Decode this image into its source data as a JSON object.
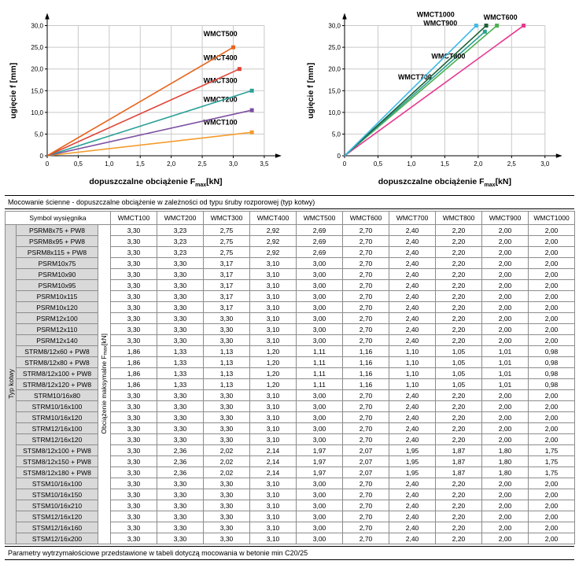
{
  "chart_data": [
    {
      "type": "line",
      "title": "",
      "xlabel_pre": "dopuszczalne obciążenie F",
      "xlabel_sub": "max",
      "xlabel_post": "[kN]",
      "ylabel": "ugięcie f [mm]",
      "xlim": [
        0,
        3.78
      ],
      "ylim": [
        0,
        33
      ],
      "grid": true,
      "legend_position": "inline-labels",
      "x_ticks": [
        {
          "v": 0,
          "label": "0"
        },
        {
          "v": 0.5,
          "label": "0,5"
        },
        {
          "v": 1,
          "label": "1,0"
        },
        {
          "v": 1.5,
          "label": "1,5"
        },
        {
          "v": 2,
          "label": "2,0"
        },
        {
          "v": 2.5,
          "label": "2,5"
        },
        {
          "v": 3,
          "label": "3,0"
        },
        {
          "v": 3.5,
          "label": "3,5"
        }
      ],
      "y_ticks": [
        {
          "v": 0,
          "label": "0"
        },
        {
          "v": 5,
          "label": "5,0"
        },
        {
          "v": 10,
          "label": "10,0"
        },
        {
          "v": 15,
          "label": "15,0"
        },
        {
          "v": 20,
          "label": "20,0"
        },
        {
          "v": 25,
          "label": "25,0"
        },
        {
          "v": 30,
          "label": "30,0"
        }
      ],
      "series": [
        {
          "name": "WMCT100",
          "color": "#f39c2c",
          "points": [
            [
              0,
              0
            ],
            [
              3.3,
              5.4
            ]
          ],
          "label_pos": [
            2.52,
            7.2
          ]
        },
        {
          "name": "WMCT200",
          "color": "#7d4fa0",
          "points": [
            [
              0,
              0
            ],
            [
              3.3,
              10.5
            ]
          ],
          "label_pos": [
            2.52,
            12.4
          ]
        },
        {
          "name": "WMCT300",
          "color": "#2ba197",
          "points": [
            [
              0,
              0
            ],
            [
              3.3,
              15.0
            ]
          ],
          "label_pos": [
            2.52,
            16.8
          ]
        },
        {
          "name": "WMCT400",
          "color": "#e04438",
          "points": [
            [
              0,
              0
            ],
            [
              3.1,
              20.0
            ]
          ],
          "label_pos": [
            2.52,
            22.0
          ]
        },
        {
          "name": "WMCT500",
          "color": "#e8641b",
          "points": [
            [
              0,
              0
            ],
            [
              3.0,
              25.0
            ]
          ],
          "label_pos": [
            2.52,
            27.6
          ]
        }
      ]
    },
    {
      "type": "line",
      "title": "",
      "xlabel_pre": "dopuszczalne obciążenie F",
      "xlabel_sub": "max",
      "xlabel_post": "[kN]",
      "ylabel": "ugięcie f [mm]",
      "xlim": [
        0,
        3.25
      ],
      "ylim": [
        0,
        33
      ],
      "grid": true,
      "legend_position": "inline-labels",
      "x_ticks": [
        {
          "v": 0,
          "label": "0"
        },
        {
          "v": 0.5,
          "label": "0,5"
        },
        {
          "v": 1,
          "label": "1,0"
        },
        {
          "v": 1.5,
          "label": "1,5"
        },
        {
          "v": 2,
          "label": "2,0"
        },
        {
          "v": 2.5,
          "label": "2,5"
        },
        {
          "v": 3,
          "label": "3,0"
        }
      ],
      "y_ticks": [
        {
          "v": 0,
          "label": "0"
        },
        {
          "v": 5,
          "label": "5,0"
        },
        {
          "v": 10,
          "label": "10,0"
        },
        {
          "v": 15,
          "label": "15,0"
        },
        {
          "v": 20,
          "label": "20,0"
        },
        {
          "v": 25,
          "label": "25,0"
        },
        {
          "v": 30,
          "label": "30,0"
        }
      ],
      "series": [
        {
          "name": "WMCT600",
          "color": "#e8368f",
          "points": [
            [
              0,
              0
            ],
            [
              2.68,
              30
            ]
          ],
          "label_pos": [
            2.08,
            31.4
          ]
        },
        {
          "name": "WMCT700",
          "color": "#4caf50",
          "points": [
            [
              0,
              0
            ],
            [
              2.28,
              30
            ]
          ],
          "label_pos": [
            0.8,
            17.6
          ]
        },
        {
          "name": "WMCT800",
          "color": "#2ba197",
          "points": [
            [
              0,
              0
            ],
            [
              2.1,
              28.6
            ]
          ],
          "label_pos": [
            1.3,
            22.4
          ]
        },
        {
          "name": "WMCT900",
          "color": "#1d5e33",
          "points": [
            [
              0,
              0
            ],
            [
              2.12,
              30
            ]
          ],
          "label_pos": [
            1.18,
            30.0
          ]
        },
        {
          "name": "WMCT1000",
          "color": "#3cb9e8",
          "points": [
            [
              0,
              0
            ],
            [
              1.97,
              30
            ]
          ],
          "label_pos": [
            1.08,
            32.0
          ]
        }
      ]
    }
  ],
  "table": {
    "caption": "Mocowanie ścienne - dopuszczalne obciążenie w zależności od typu śruby rozporowej (typ kotwy)",
    "footnote": "Parametry wytrzymałościowe przedstawione w tabeli dotyczą mocowania w betonie min C20/25",
    "symbol_header": "Symbol wysięgnika",
    "row_group_label": "Typ kotwy",
    "value_axis_label_pre": "Obciążenie maksymalne F",
    "value_axis_label_sub": "max",
    "value_axis_label_post": "[kN]",
    "columns": [
      "WMCT100",
      "WMCT200",
      "WMCT300",
      "WMCT400",
      "WMCT500",
      "WMCT600",
      "WMCT700",
      "WMCT800",
      "WMCT900",
      "WMCT1000"
    ],
    "rows": [
      {
        "symbol": "PSRM8x75 + PW8",
        "values": [
          "3,30",
          "3,23",
          "2,75",
          "2,92",
          "2,69",
          "2,70",
          "2,40",
          "2,20",
          "2,00",
          "2,00"
        ]
      },
      {
        "symbol": "PSRM8x95 + PW8",
        "values": [
          "3,30",
          "3,23",
          "2,75",
          "2,92",
          "2,69",
          "2,70",
          "2,40",
          "2,20",
          "2,00",
          "2,00"
        ]
      },
      {
        "symbol": "PSRM8x115 + PW8",
        "values": [
          "3,30",
          "3,23",
          "2,75",
          "2,92",
          "2,69",
          "2,70",
          "2,40",
          "2,20",
          "2,00",
          "2,00"
        ]
      },
      {
        "symbol": "PSRM10x75",
        "values": [
          "3,30",
          "3,30",
          "3,17",
          "3,10",
          "3,00",
          "2,70",
          "2,40",
          "2,20",
          "2,00",
          "2,00"
        ]
      },
      {
        "symbol": "PSRM10x90",
        "values": [
          "3,30",
          "3,30",
          "3,17",
          "3,10",
          "3,00",
          "2,70",
          "2,40",
          "2,20",
          "2,00",
          "2,00"
        ]
      },
      {
        "symbol": "PSRM10x95",
        "values": [
          "3,30",
          "3,30",
          "3,17",
          "3,10",
          "3,00",
          "2,70",
          "2,40",
          "2,20",
          "2,00",
          "2,00"
        ]
      },
      {
        "symbol": "PSRM10x115",
        "values": [
          "3,30",
          "3,30",
          "3,17",
          "3,10",
          "3,00",
          "2,70",
          "2,40",
          "2,20",
          "2,00",
          "2,00"
        ]
      },
      {
        "symbol": "PSRM10x120",
        "values": [
          "3,30",
          "3,30",
          "3,17",
          "3,10",
          "3,00",
          "2,70",
          "2,40",
          "2,20",
          "2,00",
          "2,00"
        ]
      },
      {
        "symbol": "PSRM12x100",
        "values": [
          "3,30",
          "3,30",
          "3,30",
          "3,10",
          "3,00",
          "2,70",
          "2,40",
          "2,20",
          "2,00",
          "2,00"
        ]
      },
      {
        "symbol": "PSRM12x110",
        "values": [
          "3,30",
          "3,30",
          "3,30",
          "3,10",
          "3,00",
          "2,70",
          "2,40",
          "2,20",
          "2,00",
          "2,00"
        ]
      },
      {
        "symbol": "PSRM12x140",
        "values": [
          "3,30",
          "3,30",
          "3,30",
          "3,10",
          "3,00",
          "2,70",
          "2,40",
          "2,20",
          "2,00",
          "2,00"
        ]
      },
      {
        "symbol": "STRM8/12x60 + PW8",
        "values": [
          "1,86",
          "1,33",
          "1,13",
          "1,20",
          "1,11",
          "1,16",
          "1,10",
          "1,05",
          "1,01",
          "0,98"
        ]
      },
      {
        "symbol": "STRM8/12x80 + PW8",
        "values": [
          "1,86",
          "1,33",
          "1,13",
          "1,20",
          "1,11",
          "1,16",
          "1,10",
          "1,05",
          "1,01",
          "0,98"
        ]
      },
      {
        "symbol": "STRM8/12x100 + PW8",
        "values": [
          "1,86",
          "1,33",
          "1,13",
          "1,20",
          "1,11",
          "1,16",
          "1,10",
          "1,05",
          "1,01",
          "0,98"
        ]
      },
      {
        "symbol": "STRM8/12x120 + PW8",
        "values": [
          "1,86",
          "1,33",
          "1,13",
          "1,20",
          "1,11",
          "1,16",
          "1,10",
          "1,05",
          "1,01",
          "0,98"
        ]
      },
      {
        "symbol": "STRM10/16x80",
        "values": [
          "3,30",
          "3,30",
          "3,30",
          "3,10",
          "3,00",
          "2,70",
          "2,40",
          "2,20",
          "2,00",
          "2,00"
        ]
      },
      {
        "symbol": "STRM10/16x100",
        "values": [
          "3,30",
          "3,30",
          "3,30",
          "3,10",
          "3,00",
          "2,70",
          "2,40",
          "2,20",
          "2,00",
          "2,00"
        ]
      },
      {
        "symbol": "STRM10/16x120",
        "values": [
          "3,30",
          "3,30",
          "3,30",
          "3,10",
          "3,00",
          "2,70",
          "2,40",
          "2,20",
          "2,00",
          "2,00"
        ]
      },
      {
        "symbol": "STRM12/16x100",
        "values": [
          "3,30",
          "3,30",
          "3,30",
          "3,10",
          "3,00",
          "2,70",
          "2,40",
          "2,20",
          "2,00",
          "2,00"
        ]
      },
      {
        "symbol": "STRM12/16x120",
        "values": [
          "3,30",
          "3,30",
          "3,30",
          "3,10",
          "3,00",
          "2,70",
          "2,40",
          "2,20",
          "2,00",
          "2,00"
        ]
      },
      {
        "symbol": "STSM8/12x100 + PW8",
        "values": [
          "3,30",
          "2,36",
          "2,02",
          "2,14",
          "1,97",
          "2,07",
          "1,95",
          "1,87",
          "1,80",
          "1,75"
        ]
      },
      {
        "symbol": "STSM8/12x150 + PW8",
        "values": [
          "3,30",
          "2,36",
          "2,02",
          "2,14",
          "1,97",
          "2,07",
          "1,95",
          "1,87",
          "1,80",
          "1,75"
        ]
      },
      {
        "symbol": "STSM8/12x180 + PW8",
        "values": [
          "3,30",
          "2,36",
          "2,02",
          "2,14",
          "1,97",
          "2,07",
          "1,95",
          "1,87",
          "1,80",
          "1,75"
        ]
      },
      {
        "symbol": "STSM10/16x100",
        "values": [
          "3,30",
          "3,30",
          "3,30",
          "3,10",
          "3,00",
          "2,70",
          "2,40",
          "2,20",
          "2,00",
          "2,00"
        ]
      },
      {
        "symbol": "STSM10/16x150",
        "values": [
          "3,30",
          "3,30",
          "3,30",
          "3,10",
          "3,00",
          "2,70",
          "2,40",
          "2,20",
          "2,00",
          "2,00"
        ]
      },
      {
        "symbol": "STSM10/16x210",
        "values": [
          "3,30",
          "3,30",
          "3,30",
          "3,10",
          "3,00",
          "2,70",
          "2,40",
          "2,20",
          "2,00",
          "2,00"
        ]
      },
      {
        "symbol": "STSM12/16x120",
        "values": [
          "3,30",
          "3,30",
          "3,30",
          "3,10",
          "3,00",
          "2,70",
          "2,40",
          "2,20",
          "2,00",
          "2,00"
        ]
      },
      {
        "symbol": "STSM12/16x160",
        "values": [
          "3,30",
          "3,30",
          "3,30",
          "3,10",
          "3,00",
          "2,70",
          "2,40",
          "2,20",
          "2,00",
          "2,00"
        ]
      },
      {
        "symbol": "STSM12/16x200",
        "values": [
          "3,30",
          "3,30",
          "3,30",
          "3,10",
          "3,00",
          "2,70",
          "2,40",
          "2,20",
          "2,00",
          "2,00"
        ]
      }
    ]
  }
}
